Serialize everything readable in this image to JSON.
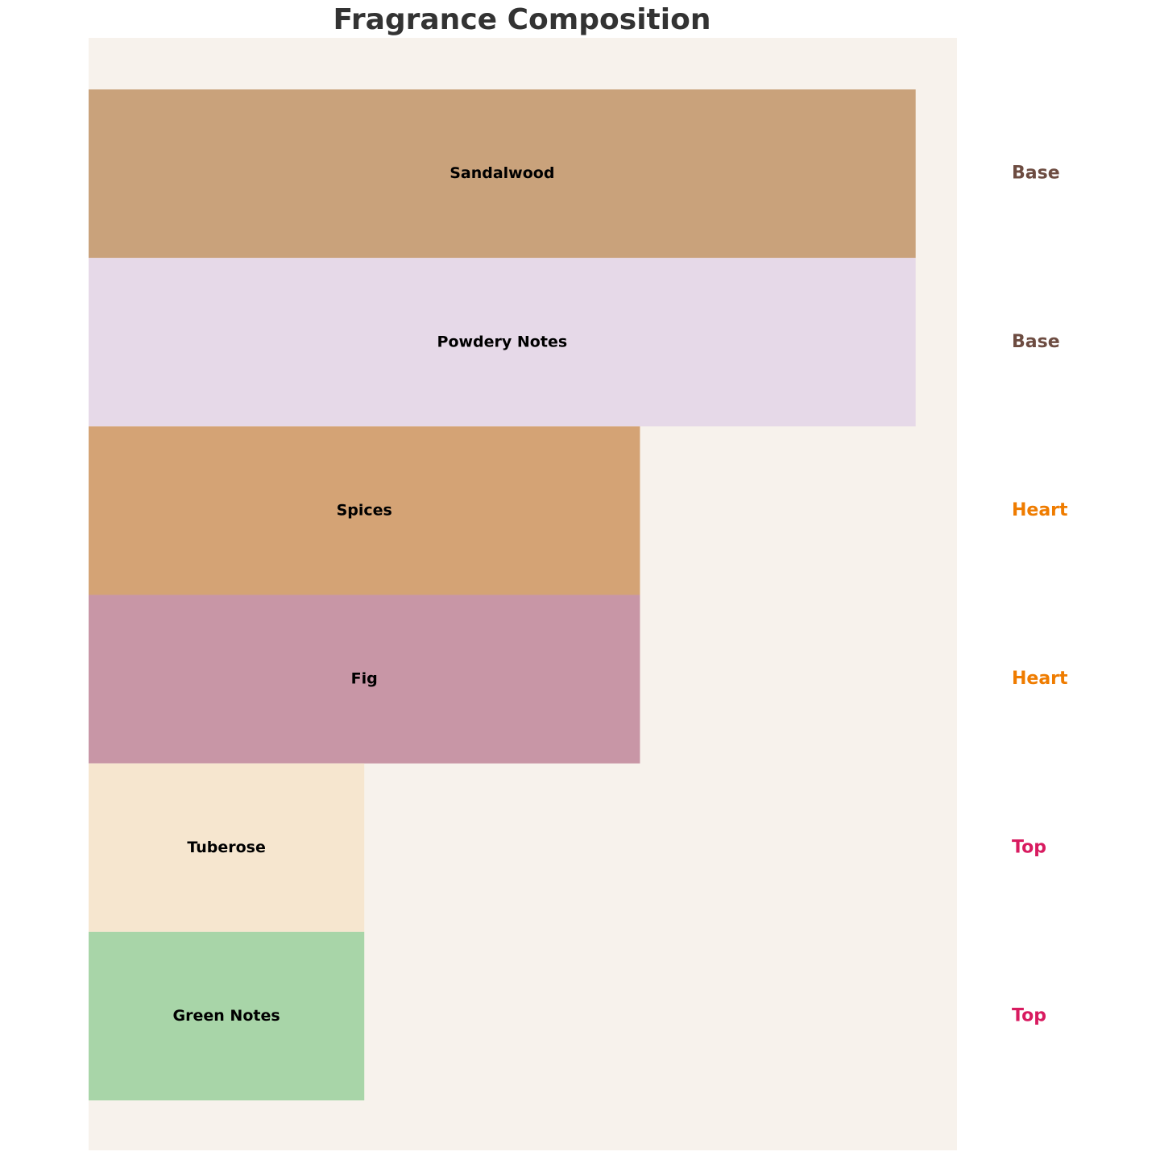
{
  "chart_data": {
    "type": "bar",
    "orientation": "horizontal",
    "title": "Fragrance Composition",
    "categories": [
      "Sandalwood",
      "Powdery Notes",
      "Spices",
      "Fig",
      "Tuberose",
      "Green Notes"
    ],
    "values": [
      3,
      3,
      2,
      2,
      1,
      1
    ],
    "colors": [
      "#c9a27b",
      "#e6d9e8",
      "#d4a375",
      "#c896a6",
      "#f6e6cf",
      "#a8d5a8"
    ],
    "levels": [
      "Base",
      "Base",
      "Heart",
      "Heart",
      "Top",
      "Top"
    ],
    "level_colors": [
      "#6d4c41",
      "#6d4c41",
      "#ef7c00",
      "#ef7c00",
      "#d81b60",
      "#d81b60"
    ],
    "xlim": [
      0,
      3.15
    ],
    "background": "#f7f2ec"
  }
}
